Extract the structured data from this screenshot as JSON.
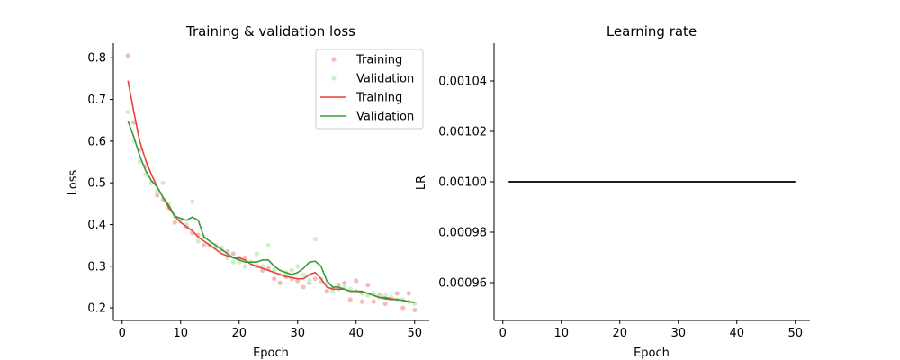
{
  "chart_data": [
    {
      "type": "line",
      "title": "Training & validation loss",
      "xlabel": "Epoch",
      "ylabel": "Loss",
      "xlim": [
        -1.5,
        52.5
      ],
      "ylim": [
        0.17,
        0.835
      ],
      "xticks": [
        0,
        10,
        20,
        30,
        40,
        50
      ],
      "yticks": [
        0.2,
        0.3,
        0.4,
        0.5,
        0.6,
        0.7,
        0.8
      ],
      "ytick_labels": [
        "0.2",
        "0.3",
        "0.4",
        "0.5",
        "0.6",
        "0.7",
        "0.8"
      ],
      "grid": false,
      "legend": "upper right",
      "legend_entries": [
        "Training",
        "Validation",
        "Training",
        "Validation"
      ],
      "scatter_series": [
        {
          "name": "Training",
          "color": "#f4bcbc",
          "x": [
            1,
            2,
            3,
            4,
            5,
            6,
            7,
            8,
            9,
            10,
            11,
            12,
            13,
            14,
            15,
            16,
            17,
            18,
            19,
            20,
            21,
            22,
            23,
            24,
            25,
            26,
            27,
            28,
            29,
            30,
            31,
            32,
            33,
            34,
            35,
            36,
            37,
            38,
            39,
            40,
            41,
            42,
            43,
            44,
            45,
            46,
            47,
            48,
            49,
            50
          ],
          "y": [
            0.805,
            0.645,
            0.58,
            0.54,
            0.5,
            0.47,
            0.46,
            0.44,
            0.405,
            0.41,
            0.395,
            0.38,
            0.375,
            0.35,
            0.35,
            0.345,
            0.34,
            0.335,
            0.33,
            0.32,
            0.32,
            0.31,
            0.3,
            0.29,
            0.295,
            0.27,
            0.26,
            0.275,
            0.27,
            0.265,
            0.25,
            0.26,
            0.27,
            0.265,
            0.24,
            0.245,
            0.255,
            0.26,
            0.22,
            0.265,
            0.215,
            0.255,
            0.215,
            0.23,
            0.21,
            0.225,
            0.235,
            0.2,
            0.235,
            0.195
          ]
        },
        {
          "name": "Validation",
          "color": "#c8f2c8",
          "x": [
            1,
            2,
            3,
            4,
            5,
            6,
            7,
            8,
            9,
            10,
            11,
            12,
            13,
            14,
            15,
            16,
            17,
            18,
            19,
            20,
            21,
            22,
            23,
            24,
            25,
            26,
            27,
            28,
            29,
            30,
            31,
            32,
            33,
            34,
            35,
            36,
            37,
            38,
            39,
            40,
            41,
            42,
            43,
            44,
            45,
            46,
            47,
            48,
            49,
            50
          ],
          "y": [
            0.67,
            0.6,
            0.55,
            0.52,
            0.5,
            0.48,
            0.5,
            0.45,
            0.42,
            0.41,
            0.4,
            0.455,
            0.36,
            0.37,
            0.355,
            0.35,
            0.345,
            0.32,
            0.31,
            0.31,
            0.3,
            0.31,
            0.33,
            0.3,
            0.35,
            0.29,
            0.28,
            0.285,
            0.29,
            0.3,
            0.28,
            0.265,
            0.365,
            0.27,
            0.26,
            0.24,
            0.245,
            0.25,
            0.245,
            0.24,
            0.235,
            0.23,
            0.235,
            0.225,
            0.23,
            0.225,
            0.22,
            0.22,
            0.215,
            0.21
          ]
        }
      ],
      "series": [
        {
          "name": "Training",
          "color": "#e8423a",
          "x": [
            1,
            2,
            3,
            4,
            5,
            6,
            7,
            8,
            9,
            10,
            11,
            12,
            13,
            14,
            15,
            16,
            17,
            18,
            19,
            20,
            21,
            22,
            23,
            24,
            25,
            26,
            27,
            28,
            29,
            30,
            31,
            32,
            33,
            34,
            35,
            36,
            37,
            38,
            39,
            40,
            41,
            42,
            43,
            44,
            45,
            46,
            47,
            48,
            49,
            50
          ],
          "y": [
            0.745,
            0.67,
            0.6,
            0.555,
            0.52,
            0.49,
            0.465,
            0.44,
            0.42,
            0.405,
            0.395,
            0.385,
            0.37,
            0.36,
            0.35,
            0.34,
            0.33,
            0.325,
            0.32,
            0.32,
            0.315,
            0.305,
            0.3,
            0.295,
            0.29,
            0.285,
            0.28,
            0.275,
            0.273,
            0.27,
            0.27,
            0.28,
            0.285,
            0.27,
            0.25,
            0.245,
            0.245,
            0.245,
            0.24,
            0.24,
            0.24,
            0.235,
            0.23,
            0.225,
            0.225,
            0.222,
            0.22,
            0.218,
            0.215,
            0.213
          ]
        },
        {
          "name": "Validation",
          "color": "#3a9a3a",
          "x": [
            1,
            2,
            3,
            4,
            5,
            6,
            7,
            8,
            9,
            10,
            11,
            12,
            13,
            14,
            15,
            16,
            17,
            18,
            19,
            20,
            21,
            22,
            23,
            24,
            25,
            26,
            27,
            28,
            29,
            30,
            31,
            32,
            33,
            34,
            35,
            36,
            37,
            38,
            39,
            40,
            41,
            42,
            43,
            44,
            45,
            46,
            47,
            48,
            49,
            50
          ],
          "y": [
            0.648,
            0.61,
            0.565,
            0.53,
            0.505,
            0.49,
            0.465,
            0.445,
            0.42,
            0.415,
            0.41,
            0.418,
            0.41,
            0.37,
            0.36,
            0.35,
            0.34,
            0.33,
            0.32,
            0.315,
            0.31,
            0.31,
            0.31,
            0.315,
            0.315,
            0.3,
            0.29,
            0.285,
            0.28,
            0.285,
            0.295,
            0.31,
            0.312,
            0.3,
            0.265,
            0.25,
            0.25,
            0.245,
            0.24,
            0.24,
            0.238,
            0.235,
            0.23,
            0.225,
            0.222,
            0.22,
            0.22,
            0.218,
            0.215,
            0.213
          ]
        }
      ]
    },
    {
      "type": "line",
      "title": "Learning rate",
      "xlabel": "Epoch",
      "ylabel": "LR",
      "xlim": [
        -1.5,
        52.5
      ],
      "ylim": [
        0.000945,
        0.001055
      ],
      "xticks": [
        0,
        10,
        20,
        30,
        40,
        50
      ],
      "yticks": [
        0.00096,
        0.00098,
        0.001,
        0.00102,
        0.00104
      ],
      "ytick_labels": [
        "0.00096",
        "0.00098",
        "0.00100",
        "0.00102",
        "0.00104"
      ],
      "grid": false,
      "series": [
        {
          "color": "#000000",
          "x": [
            1,
            50
          ],
          "y": [
            0.001,
            0.001
          ]
        }
      ]
    }
  ]
}
